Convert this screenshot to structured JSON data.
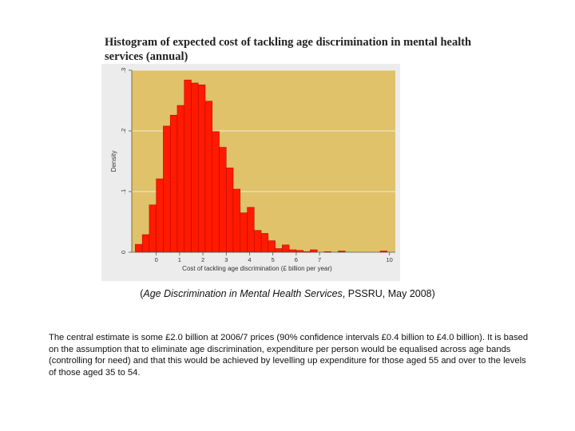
{
  "chart_data": {
    "type": "bar",
    "title": "Histogram of expected cost of tackling age discrimination in mental health services (annual)",
    "xlabel": "Cost of tackling age discrimination (£ billion per year)",
    "ylabel": "Density",
    "xlim": [
      -1.05,
      10.25
    ],
    "ylim": [
      0,
      0.3
    ],
    "xticks": [
      0,
      1,
      2,
      3,
      4,
      5,
      6,
      7,
      10
    ],
    "yticks": [
      0,
      0.1,
      0.2,
      0.3
    ],
    "xtick_labels": [
      "0",
      "1",
      "2",
      "3",
      "4",
      "5",
      "6",
      "7",
      "10"
    ],
    "ytick_labels": [
      "0",
      ".1",
      ".2",
      ".3"
    ],
    "bin_width": 0.3,
    "x": [
      -0.9,
      -0.6,
      -0.3,
      0.0,
      0.3,
      0.6,
      0.9,
      1.2,
      1.5,
      1.8,
      2.1,
      2.4,
      2.7,
      3.0,
      3.3,
      3.6,
      3.9,
      4.2,
      4.5,
      4.8,
      5.1,
      5.4,
      5.7,
      6.0,
      6.3,
      6.6,
      6.9,
      7.2,
      7.5,
      7.8,
      8.1,
      8.4,
      8.7,
      9.0,
      9.3,
      9.6
    ],
    "values": [
      0.013,
      0.029,
      0.078,
      0.121,
      0.208,
      0.226,
      0.242,
      0.284,
      0.279,
      0.276,
      0.249,
      0.199,
      0.173,
      0.139,
      0.104,
      0.065,
      0.074,
      0.036,
      0.031,
      0.019,
      0.006,
      0.012,
      0.004,
      0.003,
      0.001,
      0.004,
      0.0,
      0.001,
      0.0,
      0.002,
      0.0,
      0.0,
      0.0,
      0.0,
      0.0,
      0.002
    ],
    "grid": true,
    "colors": {
      "bar": "#ff1a00",
      "bar_edge": "#b30000",
      "plot_bg": "#dfc26a",
      "frame_bg": "#ececec",
      "grid": "#f4ecd0"
    }
  },
  "title_line1": "Histogram of expected cost of tackling age discrimination in mental health",
  "title_line2": "services (annual)",
  "caption": {
    "open": "(",
    "source_title": "Age Discrimination in Mental Health Services",
    "rest": ", PSSRU, May 2008)"
  },
  "body_text": "The central estimate is some £2.0 billion at 2006/7 prices (90% confidence intervals £0.4 billion to £4.0 billion). It is based on the assumption that to eliminate age discrimination, expenditure per person would be equalised across age bands (controlling for need) and that this would be achieved by levelling up expenditure for those aged 55 and over to the levels of those aged 35 to 54."
}
